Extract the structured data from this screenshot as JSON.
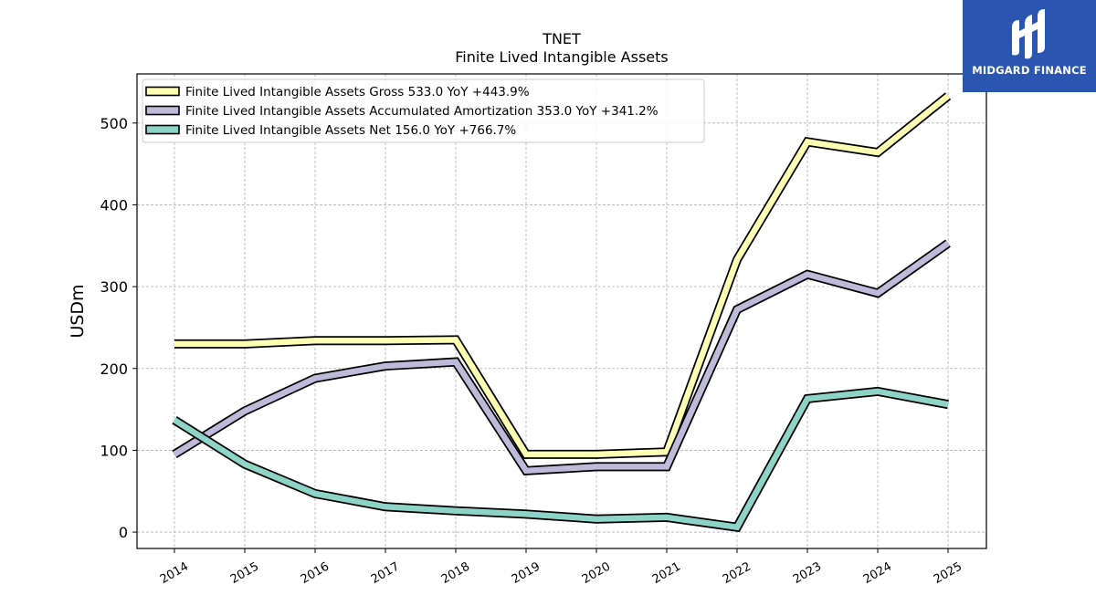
{
  "brand": {
    "name": "MIDGARD FINANCE",
    "background": "#2a55b0",
    "logo_icon": "midgard-m-mark-icon"
  },
  "chart_data": {
    "type": "line",
    "title": "TNET",
    "subtitle": "Finite Lived Intangible Assets",
    "xlabel": "",
    "ylabel": "USDm",
    "x": [
      "2014",
      "2015",
      "2016",
      "2017",
      "2018",
      "2019",
      "2020",
      "2021",
      "2022",
      "2023",
      "2024",
      "2025"
    ],
    "ylim": [
      -20,
      560
    ],
    "yticks": [
      0,
      100,
      200,
      300,
      400,
      500
    ],
    "grid": true,
    "legend_position": "top-left",
    "series": [
      {
        "name": "Finite Lived Intangible Assets Gross  533.0 YoY +443.9%",
        "color": "#ffffb3",
        "values": [
          230,
          230,
          234,
          234,
          235,
          95,
          95,
          98,
          333,
          477,
          464,
          533
        ]
      },
      {
        "name": "Finite Lived Intangible Assets Accumulated Amortization  353.0 YoY +341.2%",
        "color": "#bebada",
        "values": [
          95,
          148,
          188,
          203,
          208,
          75,
          80,
          80,
          272,
          315,
          292,
          353
        ]
      },
      {
        "name": "Finite Lived Intangible Assets Net  156.0 YoY +766.7%",
        "color": "#8dd3c7",
        "values": [
          137,
          83,
          47,
          31,
          26,
          22,
          16,
          18,
          6,
          163,
          172,
          156
        ]
      }
    ]
  }
}
